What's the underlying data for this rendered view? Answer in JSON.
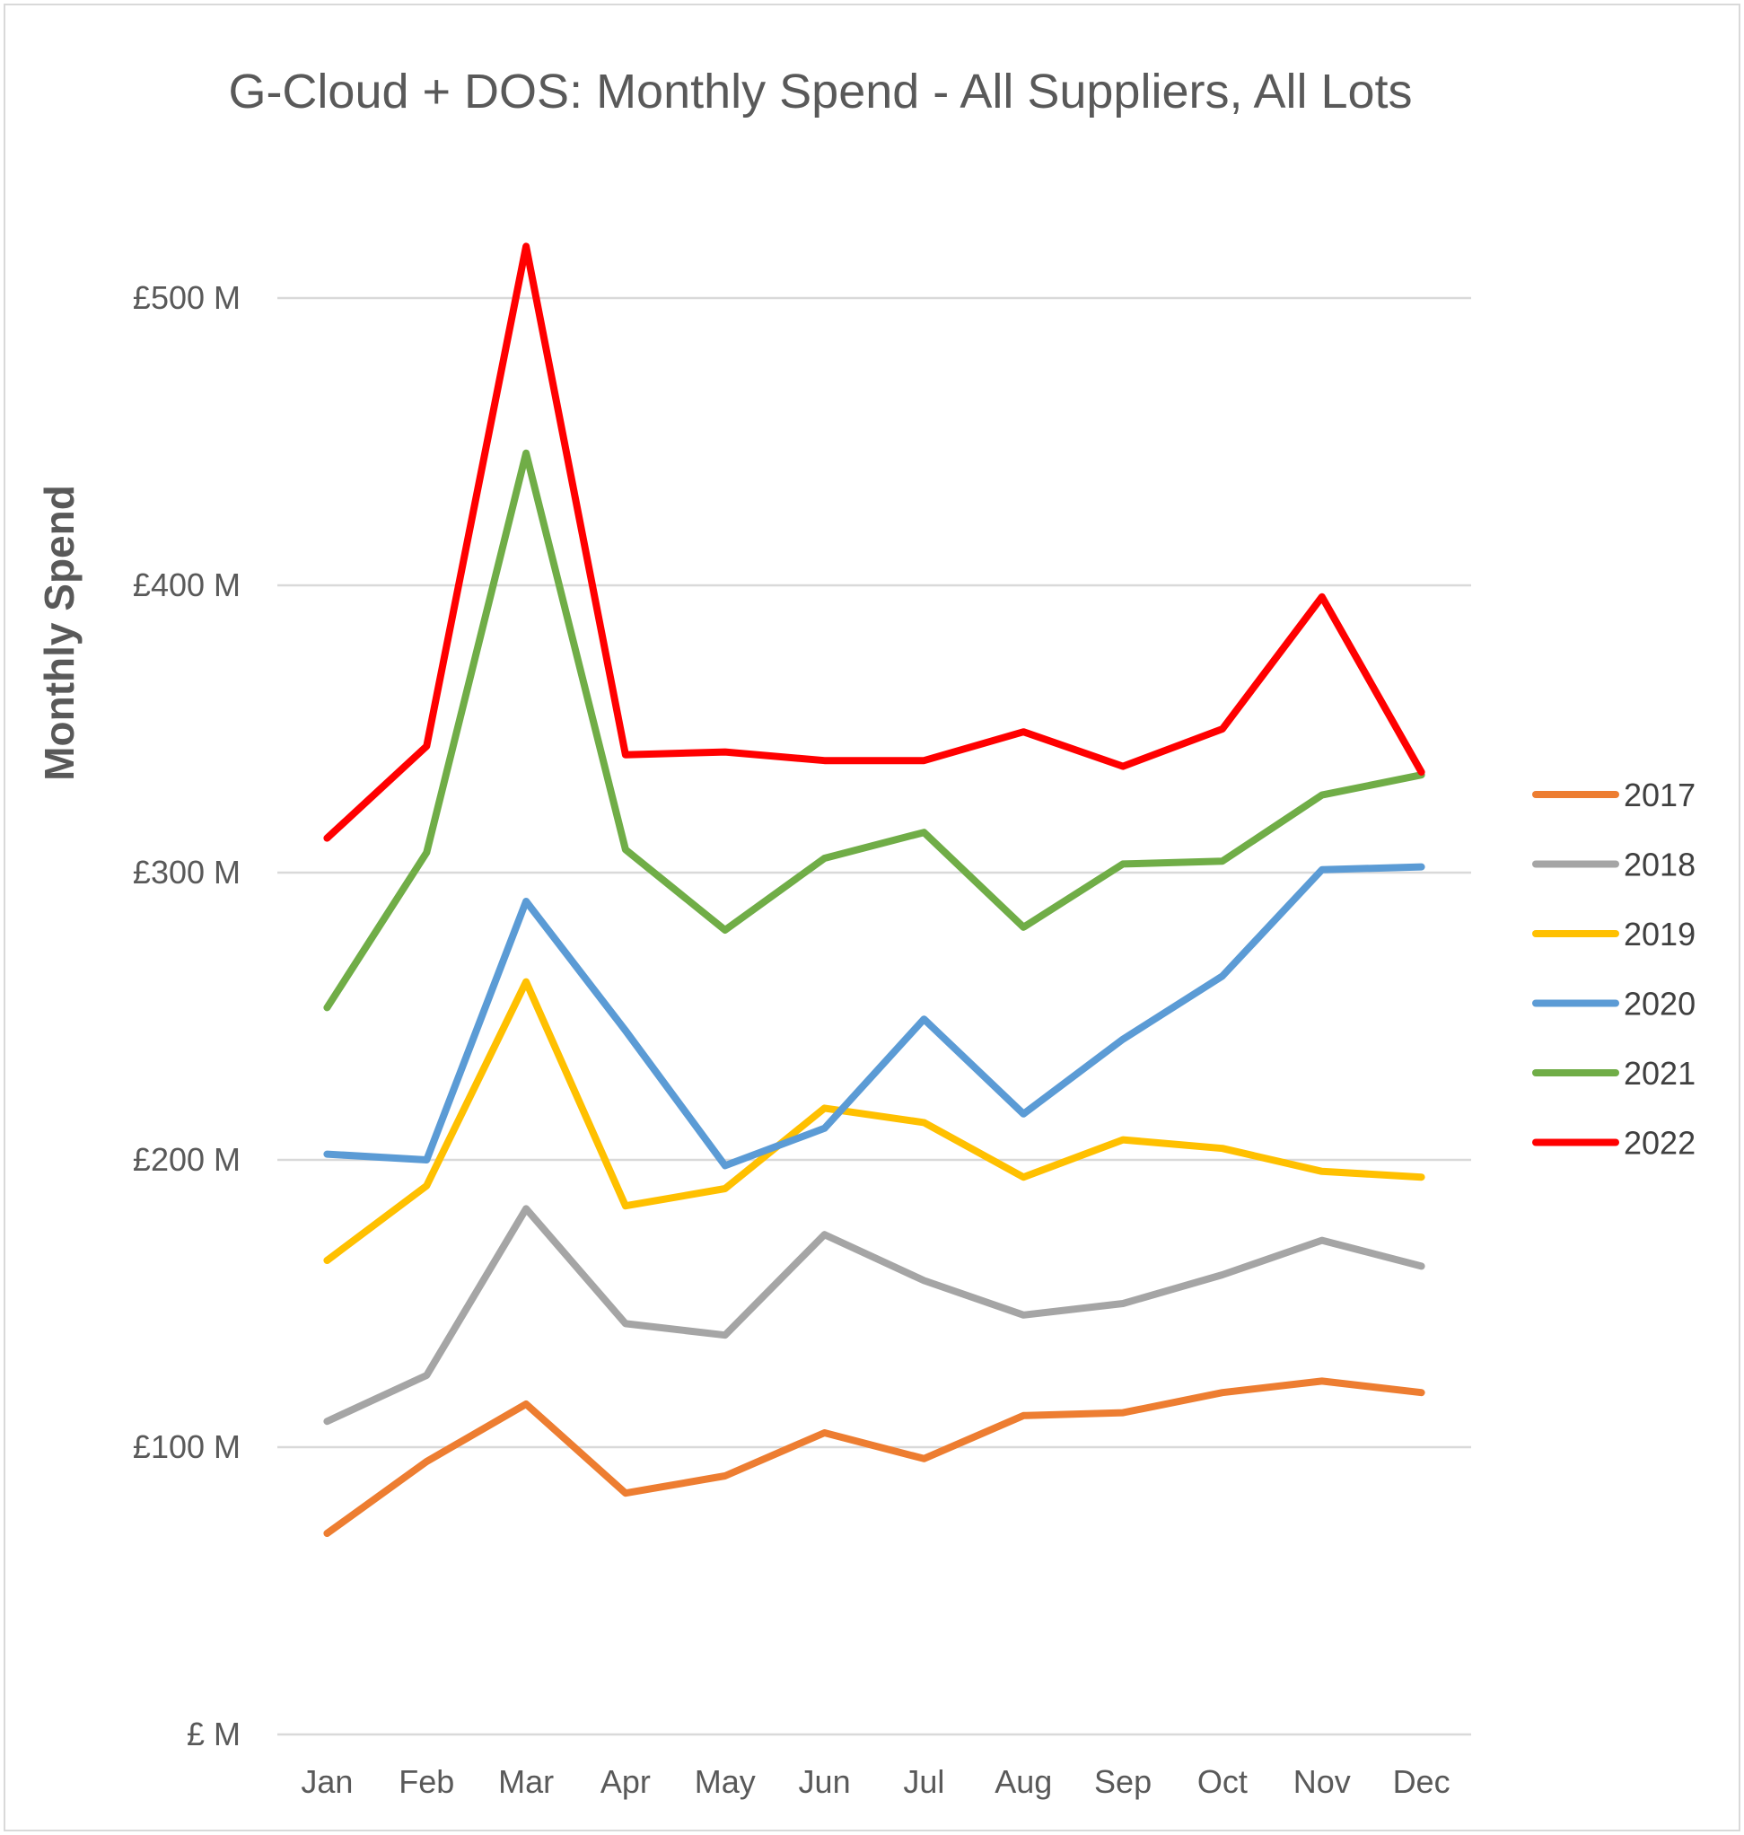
{
  "chart_data": {
    "type": "line",
    "title": "G-Cloud + DOS: Monthly Spend - All Suppliers, All Lots",
    "xlabel": "",
    "ylabel": "Monthly Spend",
    "categories": [
      "Jan",
      "Feb",
      "Mar",
      "Apr",
      "May",
      "Jun",
      "Jul",
      "Aug",
      "Sep",
      "Oct",
      "Nov",
      "Dec"
    ],
    "ylim": [
      0,
      500
    ],
    "yticks": [
      0,
      100,
      200,
      300,
      400,
      500
    ],
    "ytick_labels": [
      "£ M",
      "£100 M",
      "£200 M",
      "£300 M",
      "£400 M",
      "£500 M"
    ],
    "grid": true,
    "legend_position": "right",
    "series": [
      {
        "name": "2017",
        "color": "#ED7D31",
        "values": [
          70,
          95,
          115,
          84,
          90,
          105,
          96,
          111,
          112,
          119,
          123,
          119
        ]
      },
      {
        "name": "2018",
        "color": "#A5A5A5",
        "values": [
          109,
          125,
          183,
          143,
          139,
          174,
          158,
          146,
          150,
          160,
          172,
          163
        ]
      },
      {
        "name": "2019",
        "color": "#FFC000",
        "values": [
          165,
          191,
          262,
          184,
          190,
          218,
          213,
          194,
          207,
          204,
          196,
          194
        ]
      },
      {
        "name": "2020",
        "color": "#5B9BD5",
        "values": [
          202,
          200,
          290,
          245,
          198,
          211,
          249,
          216,
          242,
          264,
          301,
          302
        ]
      },
      {
        "name": "2021",
        "color": "#70AD47",
        "values": [
          253,
          307,
          446,
          308,
          280,
          305,
          314,
          281,
          303,
          304,
          327,
          334
        ]
      },
      {
        "name": "2022",
        "color": "#FF0000",
        "values": [
          312,
          344,
          518,
          341,
          342,
          339,
          339,
          349,
          337,
          350,
          396,
          335
        ]
      }
    ]
  }
}
